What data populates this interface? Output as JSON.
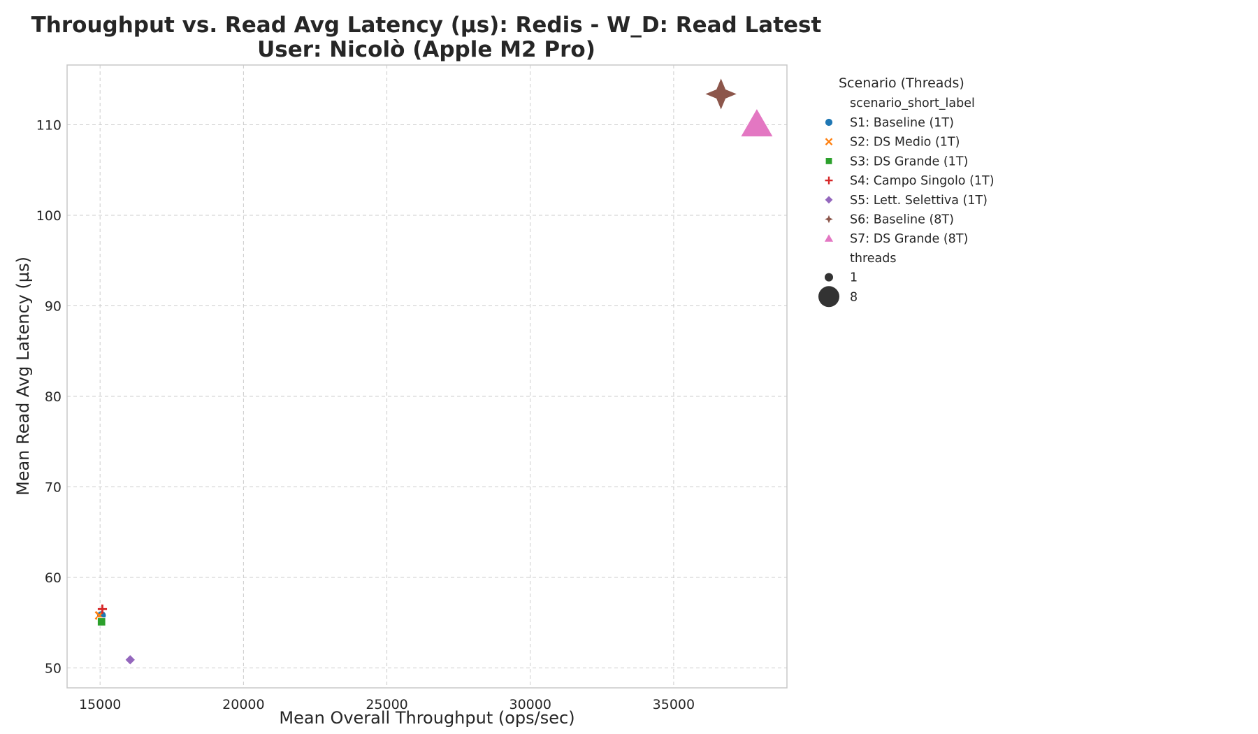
{
  "chart_data": {
    "type": "scatter",
    "title": "Throughput vs. Read Avg Latency (µs): Redis - W_D: Read Latest",
    "subtitle": "User: Nicolò (Apple M2 Pro)",
    "xlabel": "Mean Overall Throughput (ops/sec)",
    "ylabel": "Mean Read Avg Latency (µs)",
    "xlim": [
      13850,
      38950
    ],
    "ylim": [
      47.8,
      116.6
    ],
    "x_ticks": [
      15000,
      20000,
      25000,
      30000,
      35000
    ],
    "y_ticks": [
      50,
      60,
      70,
      80,
      90,
      100,
      110
    ],
    "grid": true,
    "legend_placement": "outside right",
    "series": [
      {
        "name": "S1: Baseline (1T)",
        "marker": "circle",
        "color": "#1f77b4",
        "threads": 1,
        "points": [
          {
            "x": 15050,
            "y": 55.8
          }
        ]
      },
      {
        "name": "S2: DS Medio (1T)",
        "marker": "x",
        "color": "#ff7f0e",
        "threads": 1,
        "points": [
          {
            "x": 14970,
            "y": 55.8
          }
        ]
      },
      {
        "name": "S3: DS Grande (1T)",
        "marker": "square",
        "color": "#2ca02c",
        "threads": 1,
        "points": [
          {
            "x": 15050,
            "y": 55.1
          }
        ]
      },
      {
        "name": "S4: Campo Singolo (1T)",
        "marker": "plus",
        "color": "#d62728",
        "threads": 1,
        "points": [
          {
            "x": 15080,
            "y": 56.5
          }
        ]
      },
      {
        "name": "S5: Lett. Selettiva (1T)",
        "marker": "diamond",
        "color": "#9467bd",
        "threads": 1,
        "points": [
          {
            "x": 16050,
            "y": 50.9
          }
        ]
      },
      {
        "name": "S6: Baseline (8T)",
        "marker": "star4",
        "color": "#8c564b",
        "threads": 8,
        "points": [
          {
            "x": 36650,
            "y": 113.4
          }
        ]
      },
      {
        "name": "S7: DS Grande (8T)",
        "marker": "triangle",
        "color": "#e377c2",
        "threads": 8,
        "points": [
          {
            "x": 37900,
            "y": 110.0
          }
        ]
      }
    ],
    "legend": {
      "title": "Scenario (Threads)",
      "hue_header": "scenario_short_label",
      "size_header": "threads",
      "size_entries": [
        {
          "label": "1",
          "threads": 1
        },
        {
          "label": "8",
          "threads": 8
        }
      ],
      "size_marker_color": "#333333"
    }
  }
}
